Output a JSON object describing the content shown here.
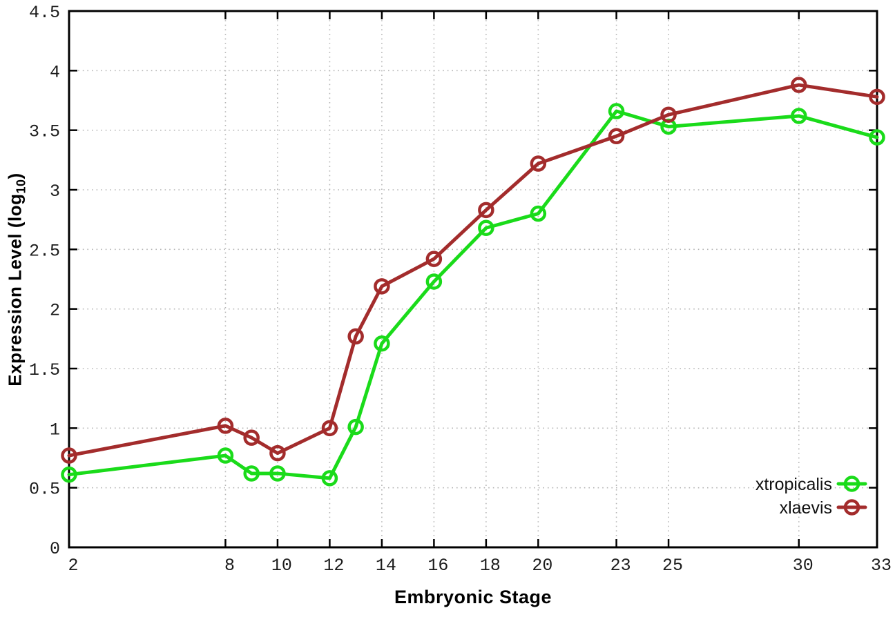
{
  "chart_data": {
    "type": "line",
    "title": "",
    "xlabel": "Embryonic Stage",
    "ylabel": "Expression Level (log10)",
    "ylabel_parts": {
      "prefix": "Expression Level (log",
      "sub": "10",
      "suffix": ")"
    },
    "x": [
      2,
      8,
      9,
      10,
      12,
      13,
      14,
      16,
      18,
      20,
      23,
      25,
      30,
      33
    ],
    "xticks": [
      2,
      8,
      10,
      12,
      14,
      16,
      18,
      20,
      23,
      25,
      30,
      33
    ],
    "yticks": [
      0,
      0.5,
      1,
      1.5,
      2,
      2.5,
      3,
      3.5,
      4,
      4.5
    ],
    "xlim": [
      2,
      33
    ],
    "ylim": [
      0,
      4.5
    ],
    "grid": true,
    "legend_position": "bottom-right",
    "series": [
      {
        "name": "xtropicalis",
        "color": "#1adb1a",
        "values": [
          0.61,
          0.77,
          0.62,
          0.62,
          0.58,
          1.01,
          1.71,
          2.23,
          2.68,
          2.8,
          3.66,
          3.53,
          3.62,
          3.44
        ]
      },
      {
        "name": "xlaevis",
        "color": "#a32c2c",
        "values": [
          0.77,
          1.02,
          0.92,
          0.79,
          1.0,
          1.77,
          2.19,
          2.42,
          2.83,
          3.22,
          3.45,
          3.63,
          3.88,
          3.78
        ]
      }
    ],
    "frame_color": "#000000",
    "grid_color": "#b5b5b5"
  }
}
